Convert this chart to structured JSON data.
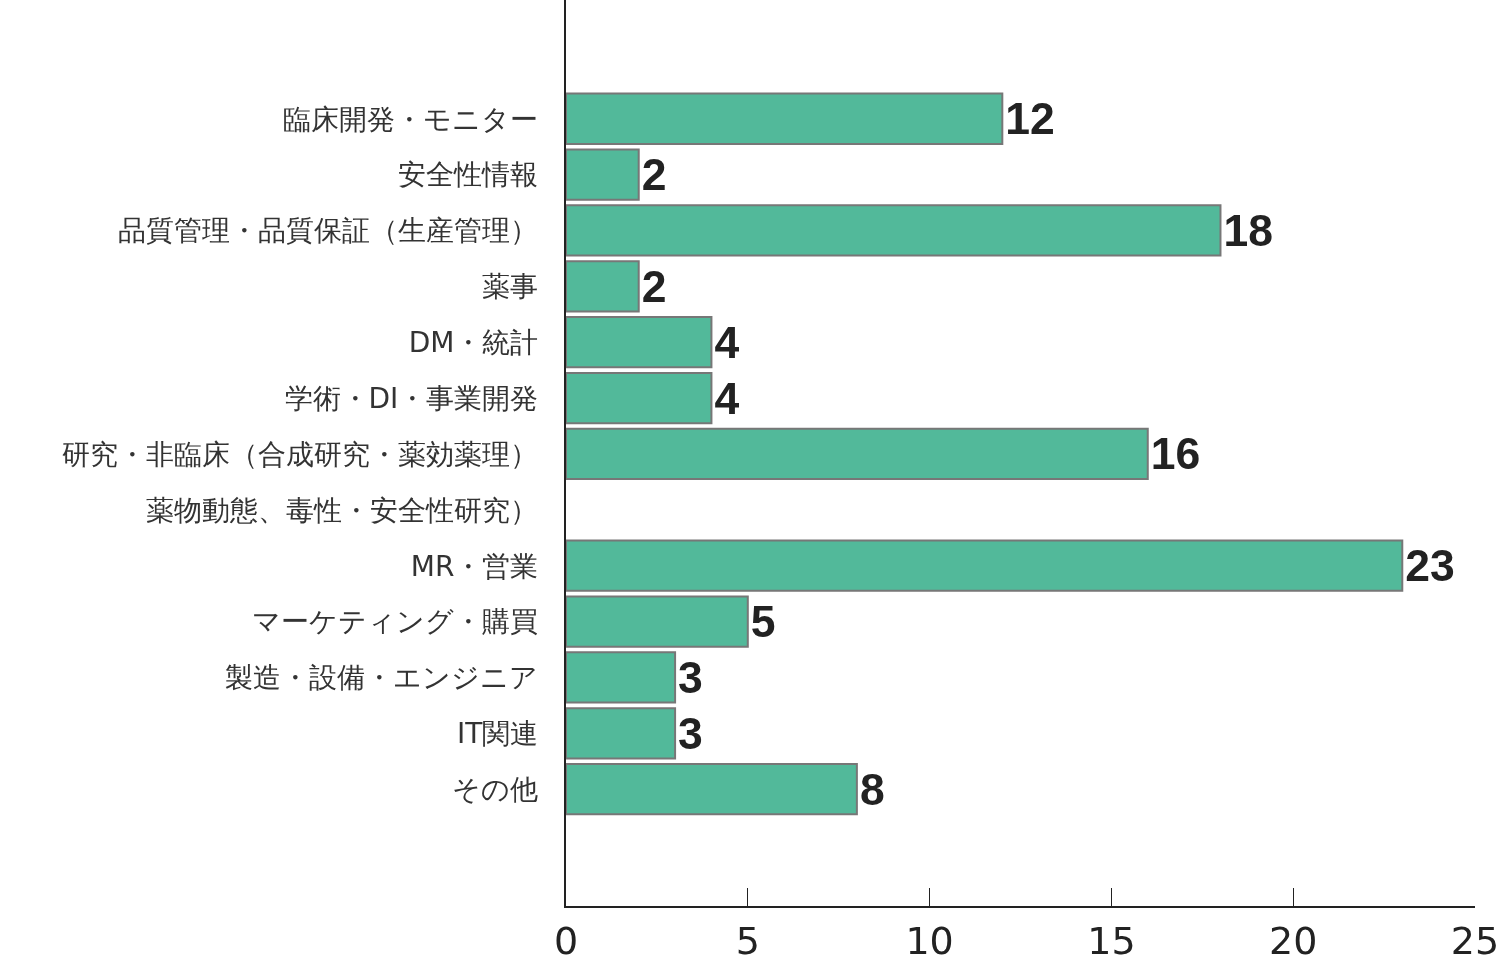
{
  "chart_data": {
    "type": "bar",
    "orientation": "horizontal",
    "categories": [
      "臨床開発・モニター",
      "安全性情報",
      "品質管理・品質保証（生産管理）",
      "薬事",
      "DM・統計",
      "学術・DI・事業開発",
      "研究・非臨床（合成研究・薬効薬理）",
      "薬物動態、毒性・安全性研究）",
      "MR・営業",
      "マーケティング・購買",
      "製造・設備・エンジニア",
      "IT関連",
      "その他"
    ],
    "values": [
      12,
      2,
      18,
      2,
      4,
      4,
      16,
      null,
      23,
      5,
      3,
      3,
      8
    ],
    "color": "#52b99a",
    "xlim": [
      0,
      25
    ],
    "xticks": [
      0,
      5,
      10,
      15,
      20,
      25
    ],
    "grid": false,
    "data_labels": true,
    "legend": false
  }
}
